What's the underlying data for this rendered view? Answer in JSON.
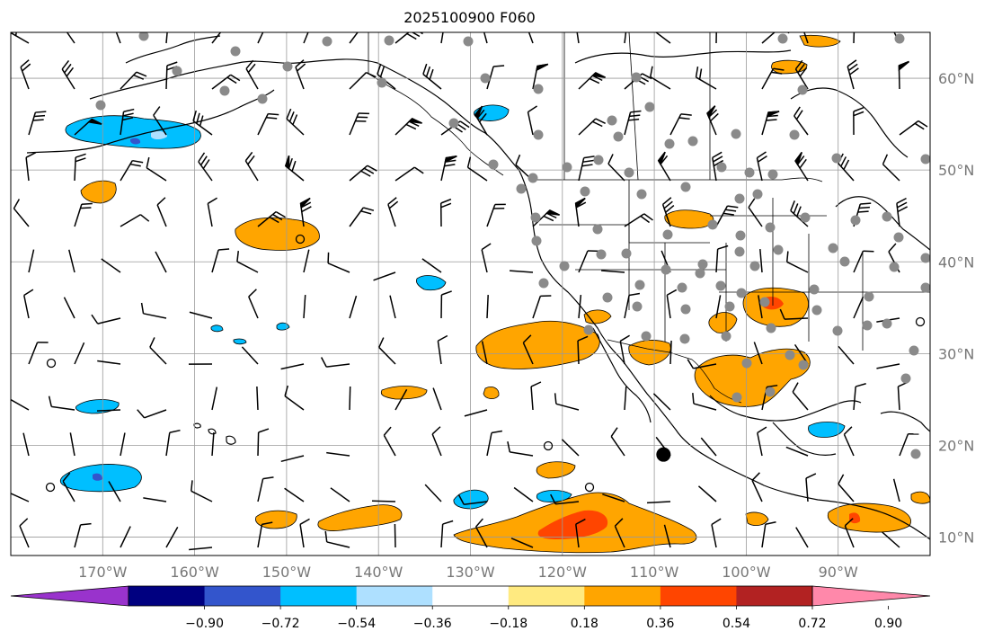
{
  "title": "2025100900 F060",
  "map": {
    "lon_ticks": [
      {
        "lon": -170,
        "label": "170°W"
      },
      {
        "lon": -160,
        "label": "160°W"
      },
      {
        "lon": -150,
        "label": "150°W"
      },
      {
        "lon": -140,
        "label": "140°W"
      },
      {
        "lon": -130,
        "label": "130°W"
      },
      {
        "lon": -120,
        "label": "120°W"
      },
      {
        "lon": -110,
        "label": "110°W"
      },
      {
        "lon": -100,
        "label": "100°W"
      },
      {
        "lon": -90,
        "label": "90°W"
      }
    ],
    "lat_ticks": [
      {
        "lat": 60,
        "label": "60°N"
      },
      {
        "lat": 50,
        "label": "50°N"
      },
      {
        "lat": 40,
        "label": "40°N"
      },
      {
        "lat": 30,
        "label": "30°N"
      },
      {
        "lat": 20,
        "label": "20°N"
      },
      {
        "lat": 10,
        "label": "10°N"
      }
    ],
    "extent": {
      "lon_min": -180,
      "lon_max": -80,
      "lat_min": 8,
      "lat_max": 65
    },
    "grid": true,
    "marker_lon": -109,
    "marker_lat": 19
  },
  "colorbar": {
    "ticks": [
      "−0.90",
      "−0.72",
      "−0.54",
      "−0.36",
      "−0.18",
      "0.18",
      "0.36",
      "0.54",
      "0.72",
      "0.90"
    ],
    "colors": [
      "#9933cc",
      "#000080",
      "#3355cc",
      "#00bfff",
      "#aee0ff",
      "#ffffff",
      "#ffea80",
      "#ffa500",
      "#ff4500",
      "#b22222",
      "#ff88aa"
    ]
  }
}
